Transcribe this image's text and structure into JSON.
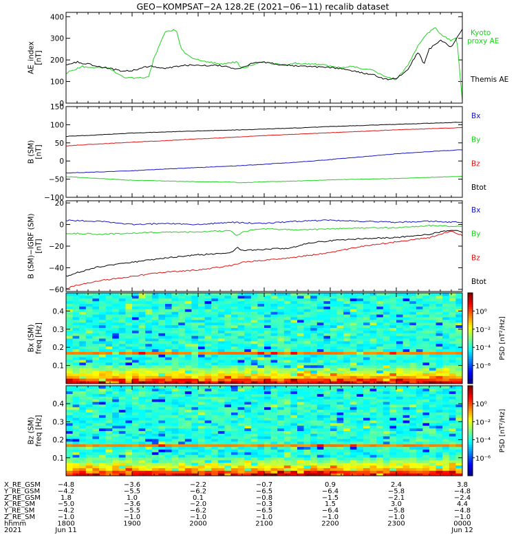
{
  "title": "GEO−KOMPSAT−2A 128.2E (2021−06−11) recalib dataset",
  "colors": {
    "black": "#000000",
    "green": "#1ed21e",
    "red": "#e01010",
    "blue": "#1414c8",
    "kyoto": "#1ed21e"
  },
  "chart_data": [
    {
      "type": "line",
      "ylabel_lines": [
        "AE_index",
        "[nT]"
      ],
      "ylim": [
        0,
        420
      ],
      "yticks": [
        0,
        100,
        200,
        300,
        400
      ],
      "tick_labels": [
        "0",
        "100",
        "200",
        "300",
        "400"
      ],
      "legend": [
        {
          "text": "Kyoto",
          "color": "#1ed21e"
        },
        {
          "text": "proxy AE",
          "color": "#1ed21e"
        },
        {
          "text": "Themis AE",
          "color": "#000000"
        }
      ],
      "series": [
        {
          "name": "Kyoto proxy AE",
          "color": "#1ed21e",
          "x": [
            1800,
            1815,
            1840,
            1845,
            1855,
            1915,
            1920,
            1930,
            1940,
            1944,
            1948,
            1955,
            2000,
            2020,
            2035,
            2040,
            2050,
            2100,
            2110,
            2120,
            2130,
            2140,
            2150,
            2200,
            2210,
            2220,
            2230,
            2240,
            2250,
            2300,
            2310,
            2320,
            2330,
            2335,
            2340,
            2350,
            2355,
            2400
          ],
          "y": [
            140,
            170,
            160,
            140,
            115,
            120,
            210,
            330,
            340,
            260,
            230,
            210,
            200,
            180,
            190,
            160,
            180,
            190,
            180,
            175,
            185,
            180,
            180,
            170,
            165,
            170,
            160,
            150,
            120,
            110,
            170,
            270,
            330,
            350,
            320,
            290,
            300,
            10
          ]
        },
        {
          "name": "Themis AE",
          "color": "#000000",
          "x": [
            1800,
            1810,
            1830,
            1850,
            1900,
            1910,
            1920,
            1930,
            1940,
            1950,
            2000,
            2020,
            2035,
            2040,
            2050,
            2100,
            2110,
            2120,
            2140,
            2200,
            2210,
            2220,
            2230,
            2240,
            2245,
            2250,
            2300,
            2310,
            2320,
            2325,
            2330,
            2340,
            2350,
            2400
          ],
          "y": [
            180,
            190,
            170,
            150,
            150,
            165,
            170,
            160,
            170,
            175,
            175,
            175,
            155,
            165,
            185,
            190,
            180,
            175,
            170,
            165,
            160,
            150,
            140,
            130,
            120,
            110,
            115,
            150,
            240,
            180,
            250,
            290,
            260,
            340
          ]
        }
      ]
    },
    {
      "type": "line",
      "ylabel_lines": [
        "B (SM)",
        "[nT]"
      ],
      "ylim": [
        -100,
        150
      ],
      "yticks": [
        -100,
        -50,
        0,
        50,
        100,
        150
      ],
      "tick_labels": [
        "−100",
        "−50",
        "0",
        "50",
        "100",
        "150"
      ],
      "legend": [
        {
          "text": "Bx",
          "color": "#1414c8"
        },
        {
          "text": "By",
          "color": "#1ed21e"
        },
        {
          "text": "Bz",
          "color": "#e01010"
        },
        {
          "text": "Btot",
          "color": "#000000"
        }
      ],
      "series": [
        {
          "name": "Btot",
          "color": "#000000",
          "x": [
            1800,
            1830,
            1900,
            1930,
            2000,
            2030,
            2100,
            2130,
            2200,
            2230,
            2300,
            2330,
            2400
          ],
          "y": [
            68,
            72,
            77,
            80,
            83,
            85,
            88,
            91,
            95,
            98,
            101,
            104,
            107
          ]
        },
        {
          "name": "Bz",
          "color": "#e01010",
          "x": [
            1800,
            1830,
            1900,
            1930,
            2000,
            2030,
            2100,
            2130,
            2200,
            2230,
            2300,
            2330,
            2400
          ],
          "y": [
            42,
            47,
            52,
            56,
            61,
            65,
            70,
            74,
            78,
            82,
            86,
            89,
            92
          ]
        },
        {
          "name": "Bx",
          "color": "#1414c8",
          "x": [
            1800,
            1830,
            1900,
            1930,
            2000,
            2030,
            2100,
            2130,
            2200,
            2230,
            2300,
            2330,
            2400
          ],
          "y": [
            -33,
            -30,
            -27,
            -22,
            -18,
            -14,
            -9,
            -3,
            4,
            12,
            20,
            26,
            31
          ]
        },
        {
          "name": "By",
          "color": "#1ed21e",
          "x": [
            1800,
            1830,
            1900,
            1930,
            2000,
            2030,
            2040,
            2100,
            2130,
            2200,
            2230,
            2300,
            2330,
            2400
          ],
          "y": [
            -43,
            -48,
            -53,
            -55,
            -57,
            -58,
            -60,
            -57,
            -55,
            -52,
            -50,
            -48,
            -45,
            -42
          ]
        }
      ]
    },
    {
      "type": "line",
      "ylabel_lines": [
        "B (SM)−IGRF (SM)",
        "[nT]"
      ],
      "ylim": [
        -62,
        22
      ],
      "yticks": [
        -60,
        -40,
        -20,
        0,
        20
      ],
      "tick_labels": [
        "−60",
        "−40",
        "−20",
        "0",
        "20"
      ],
      "legend": [
        {
          "text": "Bx",
          "color": "#1414c8"
        },
        {
          "text": "By",
          "color": "#1ed21e"
        },
        {
          "text": "Bz",
          "color": "#e01010"
        },
        {
          "text": "Btot",
          "color": "#000000"
        }
      ],
      "series": [
        {
          "name": "Bx",
          "color": "#1414c8",
          "x": [
            1800,
            1830,
            1900,
            1930,
            2000,
            2030,
            2100,
            2130,
            2200,
            2230,
            2300,
            2330,
            2400
          ],
          "y": [
            4,
            3,
            0,
            1,
            0,
            2,
            1,
            3,
            4,
            3,
            2,
            3,
            2
          ]
        },
        {
          "name": "By",
          "color": "#1ed21e",
          "x": [
            1800,
            1830,
            1900,
            1930,
            2000,
            2010,
            2030,
            2035,
            2040,
            2050,
            2100,
            2130,
            2200,
            2230,
            2300,
            2330,
            2400
          ],
          "y": [
            -8,
            -9,
            -8,
            -7,
            -7,
            -6,
            -6,
            -11,
            -7,
            -5,
            -4,
            -5,
            -4,
            -3,
            -3,
            -1,
            -2
          ]
        },
        {
          "name": "Btot",
          "color": "#000000",
          "x": [
            1800,
            1815,
            1830,
            1900,
            1930,
            2000,
            2020,
            2030,
            2035,
            2040,
            2100,
            2120,
            2130,
            2140,
            2200,
            2230,
            2300,
            2330,
            2350,
            2400
          ],
          "y": [
            -48,
            -43,
            -39,
            -35,
            -31,
            -28,
            -27,
            -26,
            -21,
            -24,
            -23,
            -22,
            -20,
            -17,
            -15,
            -13,
            -12,
            -9,
            -5,
            -7
          ]
        },
        {
          "name": "Bz",
          "color": "#e01010",
          "x": [
            1800,
            1815,
            1830,
            1900,
            1930,
            2000,
            2030,
            2040,
            2100,
            2130,
            2200,
            2230,
            2300,
            2330,
            2350,
            2400
          ],
          "y": [
            -59,
            -55,
            -52,
            -48,
            -44,
            -42,
            -38,
            -35,
            -33,
            -30,
            -26,
            -20,
            -16,
            -12,
            -6,
            -10
          ]
        }
      ]
    },
    {
      "type": "heatmap",
      "ylabel_lines": [
        "Bx (SM)",
        "freq [Hz]"
      ],
      "ylim": [
        0,
        0.5
      ],
      "yticks": [
        0.1,
        0.2,
        0.3,
        0.4
      ],
      "tick_labels": [
        "0.1",
        "0.2",
        "0.3",
        "0.4"
      ],
      "colorbar": {
        "label": "PSD [nT²/Hz]",
        "range_log10": [
          -8,
          2
        ],
        "ticks": [
          0,
          -2,
          -4,
          -6
        ],
        "tick_labels": [
          "10⁰",
          "10⁻²",
          "10⁻⁴",
          "10⁻⁶"
        ]
      }
    },
    {
      "type": "heatmap",
      "ylabel_lines": [
        "Bz (SM)",
        "freq [Hz]"
      ],
      "ylim": [
        0,
        0.5
      ],
      "yticks": [
        0.1,
        0.2,
        0.3,
        0.4
      ],
      "tick_labels": [
        "0.1",
        "0.2",
        "0.3",
        "0.4"
      ],
      "colorbar": {
        "label": "PSD [nT²/Hz]",
        "range_log10": [
          -8,
          2
        ],
        "ticks": [
          0,
          -2,
          -4,
          -6
        ],
        "tick_labels": [
          "10⁰",
          "10⁻²",
          "10⁻⁴",
          "10⁻⁶"
        ]
      }
    }
  ],
  "x_axis": {
    "ticks": [
      "1800",
      "1900",
      "2000",
      "2100",
      "2200",
      "2300",
      "0000"
    ],
    "table": [
      {
        "label": "X_RE_GSM",
        "values": [
          "−4.8",
          "−3.6",
          "−2.2",
          "−0.7",
          "0.9",
          "2.4",
          "3.8"
        ]
      },
      {
        "label": "Y_RE_GSM",
        "values": [
          "−4.2",
          "−5.5",
          "−6.2",
          "−6.5",
          "−6.4",
          "−5.8",
          "−4.8"
        ]
      },
      {
        "label": "Z_RE_GSM",
        "values": [
          "1.8",
          "1.0",
          "0.1",
          "−0.8",
          "−1.5",
          "−2.1",
          "−2.4"
        ]
      },
      {
        "label": "X_RE_SM",
        "values": [
          "−5.0",
          "−3.6",
          "−2.0",
          "−0.3",
          "1.5",
          "3.0",
          "4.4"
        ]
      },
      {
        "label": "Y_RE_SM",
        "values": [
          "−4.2",
          "−5.5",
          "−6.2",
          "−6.5",
          "−6.4",
          "−5.8",
          "−4.8"
        ]
      },
      {
        "label": "Z_RE_SM",
        "values": [
          "−1.0",
          "−1.0",
          "−1.0",
          "−1.0",
          "−1.0",
          "−1.0",
          "−1.0"
        ]
      },
      {
        "label": "hhmm",
        "values": [
          "1800",
          "1900",
          "2000",
          "2100",
          "2200",
          "2300",
          "0000"
        ]
      }
    ],
    "year": "2021",
    "date_start": "Jun 11",
    "date_end": "Jun 12"
  }
}
